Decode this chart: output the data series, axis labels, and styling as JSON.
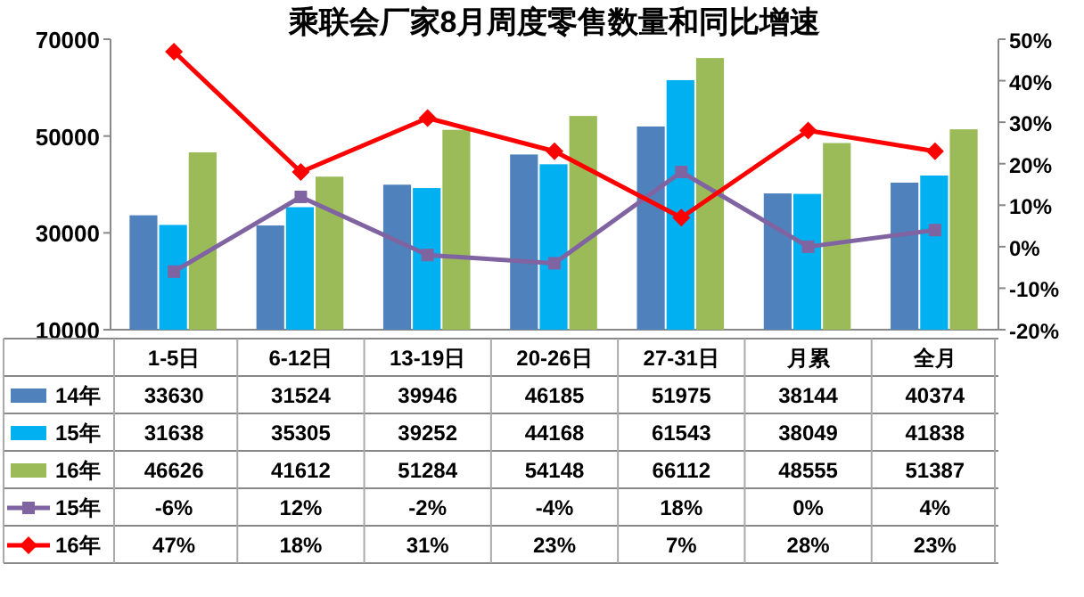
{
  "chart_data": {
    "type": "bar",
    "title": "乘联会厂家8月周度零售数量和同比增速",
    "categories": [
      "1-5日",
      "6-12日",
      "13-19日",
      "20-26日",
      "27-31日",
      "月累",
      "全月"
    ],
    "series": [
      {
        "name": "14年",
        "color": "#4f81bd",
        "values": [
          33630,
          31524,
          39946,
          46185,
          51975,
          38144,
          40374
        ],
        "value_labels": [
          "33630",
          "31524",
          "39946",
          "46185",
          "51975",
          "38144",
          "40374"
        ]
      },
      {
        "name": "15年",
        "color": "#00b0f0",
        "values": [
          31638,
          35305,
          39252,
          44168,
          61543,
          38049,
          41838
        ],
        "value_labels": [
          "31638",
          "35305",
          "39252",
          "44168",
          "61543",
          "38049",
          "41838"
        ]
      },
      {
        "name": "16年",
        "color": "#9bbb59",
        "values": [
          46626,
          41612,
          51284,
          54148,
          66112,
          48555,
          51387
        ],
        "value_labels": [
          "46626",
          "41612",
          "51284",
          "54148",
          "66112",
          "48555",
          "51387"
        ]
      },
      {
        "name": "15年",
        "type": "line",
        "axis": "y2",
        "color": "#8064a2",
        "marker": "square",
        "values": [
          -6,
          12,
          -2,
          -4,
          18,
          0,
          4
        ],
        "value_labels": [
          "-6%",
          "12%",
          "-2%",
          "-4%",
          "18%",
          "0%",
          "4%"
        ]
      },
      {
        "name": "16年",
        "type": "line",
        "axis": "y2",
        "color": "#ff0000",
        "marker": "diamond",
        "values": [
          47,
          18,
          31,
          23,
          7,
          28,
          23
        ],
        "value_labels": [
          "47%",
          "18%",
          "31%",
          "23%",
          "7%",
          "28%",
          "23%"
        ]
      }
    ],
    "ylim": [
      10000,
      70000
    ],
    "yticks": [
      10000,
      30000,
      50000,
      70000
    ],
    "y2lim": [
      -20,
      50
    ],
    "y2ticks": [
      {
        "value": -20,
        "label": "-20%"
      },
      {
        "value": -10,
        "label": "-10%"
      },
      {
        "value": 0,
        "label": "0%"
      },
      {
        "value": 10,
        "label": "10%"
      },
      {
        "value": 20,
        "label": "20%"
      },
      {
        "value": 30,
        "label": "30%"
      },
      {
        "value": 40,
        "label": "40%"
      },
      {
        "value": 50,
        "label": "50%"
      }
    ],
    "legend": "bottom",
    "grid": false
  }
}
